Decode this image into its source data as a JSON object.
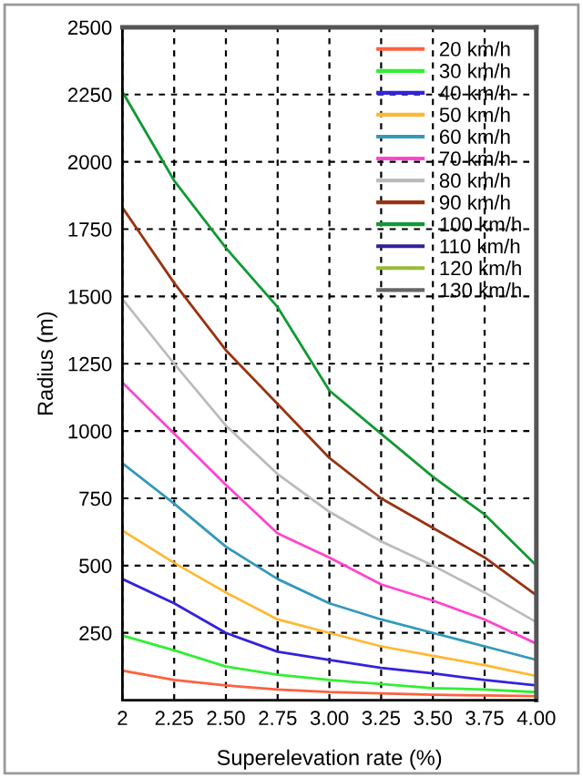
{
  "chart_data": {
    "type": "line",
    "xlabel": "Superelevation rate (%)",
    "ylabel": "Radius (m)",
    "x": [
      2,
      2.25,
      2.5,
      2.75,
      3,
      3.25,
      3.5,
      3.75,
      4
    ],
    "xlim": [
      2,
      4
    ],
    "xticks": [
      2,
      {
        "value": 2.25,
        "label": "2.25"
      },
      {
        "value": 2.5,
        "label": "2.50"
      },
      {
        "value": 2.75,
        "label": "2.75"
      },
      {
        "value": 3,
        "label": "3.00"
      },
      {
        "value": 3.25,
        "label": "3.25"
      },
      {
        "value": 3.5,
        "label": "3.50"
      },
      {
        "value": 3.75,
        "label": "3.75"
      },
      {
        "value": 4,
        "label": "4.00"
      }
    ],
    "ylim": [
      0,
      2500
    ],
    "yticks": [
      250,
      500,
      750,
      1000,
      1250,
      1500,
      1750,
      2000,
      2250,
      2500
    ],
    "grid": true,
    "legend": "top right",
    "line_style": "solid",
    "marker": "none",
    "series": [
      {
        "name": "20 km/h",
        "color": "#ff6040",
        "values": [
          110,
          75,
          55,
          40,
          30,
          25,
          20,
          18,
          15
        ]
      },
      {
        "name": "30 km/h",
        "color": "#33ee33",
        "values": [
          240,
          185,
          125,
          95,
          75,
          60,
          45,
          40,
          30
        ]
      },
      {
        "name": "40 km/h",
        "color": "#3322dd",
        "values": [
          450,
          360,
          250,
          180,
          150,
          120,
          100,
          75,
          55
        ]
      },
      {
        "name": "50 km/h",
        "color": "#ffb833",
        "values": [
          630,
          510,
          400,
          300,
          250,
          200,
          165,
          130,
          90
        ]
      },
      {
        "name": "60 km/h",
        "color": "#3399bb",
        "values": [
          880,
          730,
          570,
          450,
          360,
          300,
          250,
          200,
          150
        ]
      },
      {
        "name": "70 km/h",
        "color": "#ff44cc",
        "values": [
          1180,
          990,
          800,
          620,
          530,
          430,
          370,
          300,
          210
        ]
      },
      {
        "name": "80 km/h",
        "color": "#bbbbbb",
        "values": [
          1490,
          1250,
          1020,
          840,
          700,
          590,
          500,
          400,
          290
        ]
      },
      {
        "name": "90 km/h",
        "color": "#993311",
        "values": [
          1830,
          1550,
          1300,
          1100,
          900,
          750,
          640,
          530,
          390
        ]
      },
      {
        "name": "100 km/h",
        "color": "#119933",
        "values": [
          2260,
          1930,
          1680,
          1460,
          1150,
          990,
          830,
          690,
          500
        ]
      },
      {
        "name": "110 km/h",
        "color": "#332299",
        "values": [
          null,
          null,
          null,
          null,
          null,
          null,
          null,
          null,
          null
        ]
      },
      {
        "name": "120 km/h",
        "color": "#99bb33",
        "values": [
          null,
          null,
          null,
          null,
          null,
          null,
          null,
          null,
          null
        ]
      },
      {
        "name": "130 km/h",
        "color": "#666666",
        "values": [
          null,
          null,
          null,
          null,
          null,
          null,
          null,
          null,
          null
        ]
      }
    ]
  }
}
